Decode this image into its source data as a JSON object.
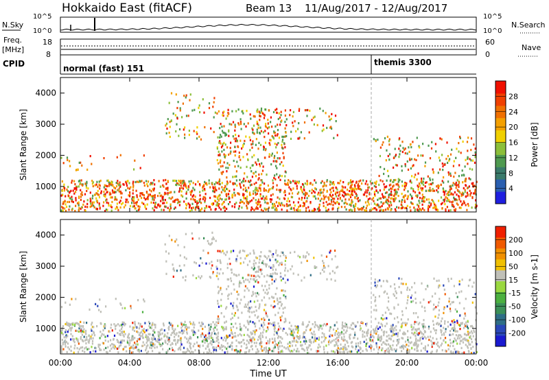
{
  "header": {
    "title": "Hokkaido East (fitACF)",
    "beam": "Beam 13",
    "date_range": "11/Aug/2017 - 12/Aug/2017"
  },
  "top_panels": {
    "nsky_label": "N.Sky",
    "nsearch_label": "N.Search",
    "noise_ticks_left": [
      "10^5",
      "10^0"
    ],
    "noise_ticks_right": [
      "10^5",
      "10^0"
    ],
    "freq_label_line1": "Freq.",
    "freq_label_line2": "[MHz]",
    "freq_ticks": [
      "18",
      "8"
    ],
    "nave_ticks": [
      "60",
      "0"
    ],
    "nave_label": "Nave",
    "cpid_label": "CPID",
    "cpid_segments": [
      {
        "label": "normal (fast) 151",
        "start_hour": 0
      },
      {
        "label": "themis 3300",
        "start_hour": 18
      }
    ]
  },
  "colorbars": {
    "power": {
      "label": "Power [dB]",
      "ticks": [
        "28",
        "24",
        "20",
        "16",
        "12",
        "8",
        "4"
      ],
      "colors": [
        "#1f1fe0",
        "#2a5fb0",
        "#3a7a6a",
        "#4f9a50",
        "#8cbf3a",
        "#f0d000",
        "#f4a000",
        "#f07000",
        "#f04000",
        "#f01000"
      ]
    },
    "velocity": {
      "label": "Velocity [m s-1]",
      "ticks": [
        "200",
        "100",
        "50",
        "15",
        "-15",
        "-50",
        "-100",
        "-200"
      ],
      "colors": [
        "#1a1ad0",
        "#2a48b8",
        "#2f6e86",
        "#3c9058",
        "#4cb040",
        "#9ad840",
        "#c0c0b8",
        "#f0c000",
        "#f09000",
        "#f05a00",
        "#f02000"
      ]
    }
  },
  "chart_data": [
    {
      "type": "heatmap",
      "title": "Power",
      "ylabel": "Slant Range [km]",
      "xlabel": "Time UT",
      "x_ticks": [
        "00:00",
        "04:00",
        "08:00",
        "12:00",
        "16:00",
        "20:00",
        "00:00"
      ],
      "y_ticks": [
        1000,
        2000,
        3000,
        4000
      ],
      "xlim_hours": [
        0,
        24
      ],
      "ylim_km": [
        180,
        4500
      ]
    },
    {
      "type": "heatmap",
      "title": "Velocity",
      "ylabel": "Slant Range [km]",
      "xlabel": "Time UT",
      "x_ticks": [
        "00:00",
        "04:00",
        "08:00",
        "12:00",
        "16:00",
        "20:00",
        "00:00"
      ],
      "y_ticks": [
        1000,
        2000,
        3000,
        4000
      ],
      "xlim_hours": [
        0,
        24
      ],
      "ylim_km": [
        180,
        4500
      ]
    }
  ],
  "axis": {
    "slant_range_label": "Slant Range [km]",
    "time_label": "Time UT"
  }
}
